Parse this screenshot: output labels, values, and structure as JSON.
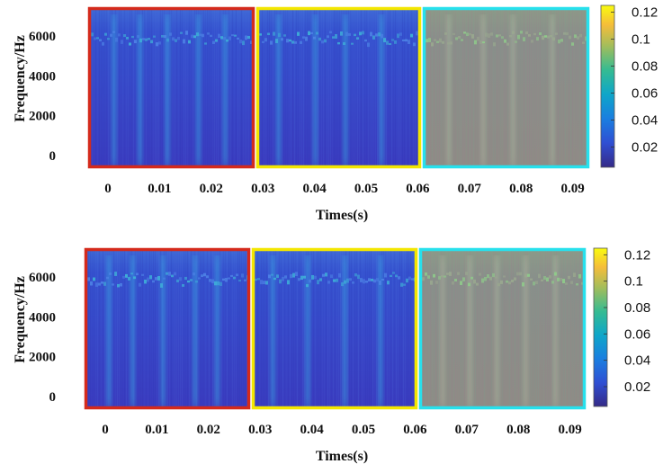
{
  "chart_data": [
    {
      "type": "heatmap",
      "title": "",
      "xlabel": "Times(s)",
      "ylabel": "Frequency/Hz",
      "xticks": [
        "0",
        "0.01",
        "0.02",
        "0.03",
        "0.04",
        "0.05",
        "0.06",
        "0.07",
        "0.08",
        "0.09"
      ],
      "yticks": [
        "6000",
        "4000",
        "2000",
        "0"
      ],
      "xlim": [
        0,
        0.095
      ],
      "ylim": [
        0,
        7000
      ],
      "colorbar": {
        "ticks": [
          "0.12",
          "0.1",
          "0.08",
          "0.06",
          "0.04",
          "0.02"
        ],
        "range": [
          0.005,
          0.125
        ],
        "colormap": "parula"
      },
      "segments": [
        {
          "range": [
            0,
            0.03
          ],
          "border_color": "#d42a1c"
        },
        {
          "range": [
            0.03,
            0.063
          ],
          "border_color": "#f3e600"
        },
        {
          "range": [
            0.063,
            0.095
          ],
          "border_color": "#27e0ec"
        }
      ],
      "grid": false
    },
    {
      "type": "heatmap",
      "title": "",
      "xlabel": "Times(s)",
      "ylabel": "Frequency/Hz",
      "xticks": [
        "0",
        "0.01",
        "0.02",
        "0.03",
        "0.04",
        "0.05",
        "0.06",
        "0.07",
        "0.08",
        "0.09"
      ],
      "yticks": [
        "6000",
        "4000",
        "2000",
        "0"
      ],
      "xlim": [
        0,
        0.095
      ],
      "ylim": [
        0,
        7000
      ],
      "colorbar": {
        "ticks": [
          "0.12",
          "0.1",
          "0.08",
          "0.06",
          "0.04",
          "0.02"
        ],
        "range": [
          0.005,
          0.125
        ],
        "colormap": "parula"
      },
      "segments": [
        {
          "range": [
            0,
            0.03
          ],
          "border_color": "#d42a1c"
        },
        {
          "range": [
            0.03,
            0.063
          ],
          "border_color": "#f3e600"
        },
        {
          "range": [
            0.063,
            0.095
          ],
          "border_color": "#27e0ec"
        }
      ],
      "grid": false
    }
  ]
}
